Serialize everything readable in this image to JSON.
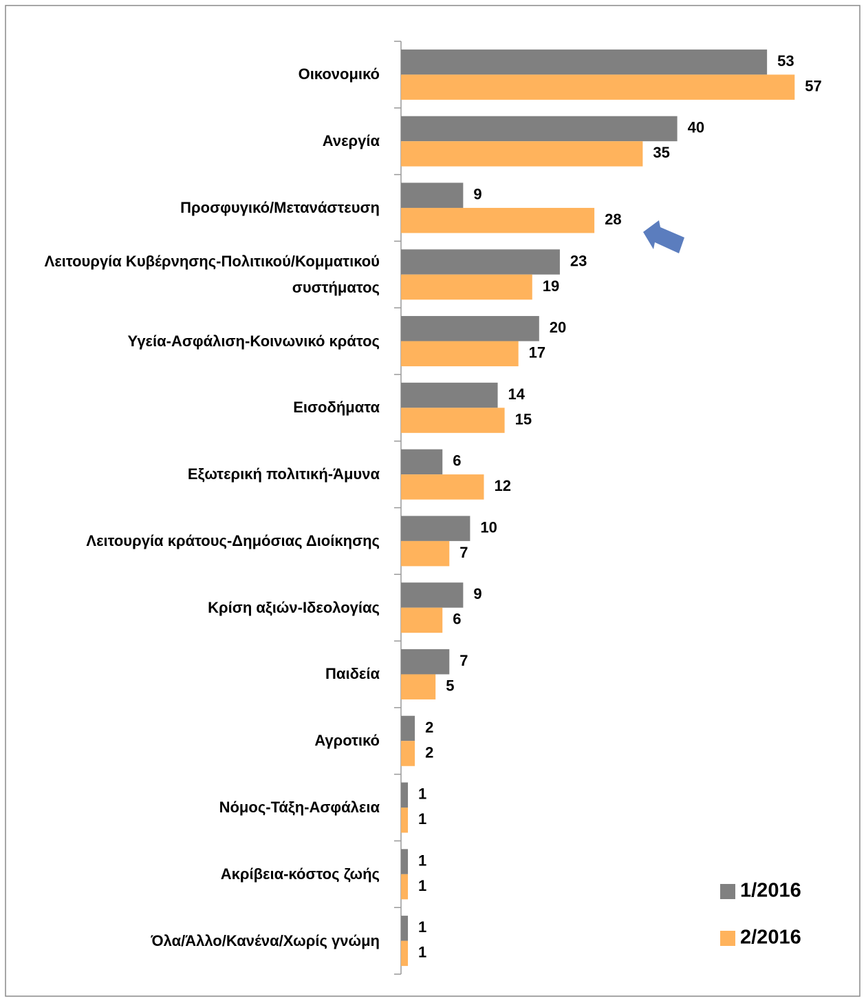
{
  "chart_data": {
    "type": "bar",
    "orientation": "horizontal",
    "categories": [
      "Οικονομικό",
      "Ανεργία",
      "Προσφυγικό/Μετανάστευση",
      "Λειτουργία Κυβέρνησης-Πολιτικού/Κομματικού συστήματος",
      "Υγεία-Ασφάλιση-Κοινωνικό κράτος",
      "Εισοδήματα",
      "Εξωτερική πολιτική-Άμυνα",
      "Λειτουργία κράτους-Δημόσιας Διοίκησης",
      "Κρίση αξιών-Ιδεολογίας",
      "Παιδεία",
      "Αγροτικό",
      "Νόμος-Τάξη-Ασφάλεια",
      "Ακρίβεια-κόστος ζωής",
      "Όλα/Άλλο/Κανένα/Χωρίς γνώμη"
    ],
    "series": [
      {
        "name": "1/2016",
        "color": "#808080",
        "values": [
          53,
          40,
          9,
          23,
          20,
          14,
          6,
          10,
          9,
          7,
          2,
          1,
          1,
          1
        ]
      },
      {
        "name": "2/2016",
        "color": "#ffb35c",
        "values": [
          57,
          35,
          28,
          19,
          17,
          15,
          12,
          7,
          6,
          5,
          2,
          1,
          1,
          1
        ]
      }
    ],
    "legend": "bottom-right"
  }
}
